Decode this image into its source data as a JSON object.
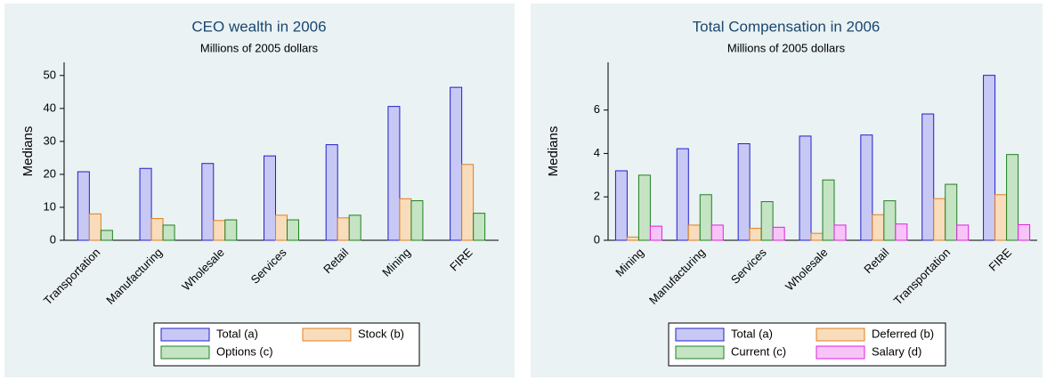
{
  "chart_data": [
    {
      "type": "bar",
      "title": "CEO wealth in 2006",
      "subtitle": "Millions of 2005 dollars",
      "ylabel": "Medians",
      "categories": [
        "Transportation",
        "Manufacturing",
        "Wholesale",
        "Services",
        "Retail",
        "Mining",
        "FIRE"
      ],
      "series": [
        {
          "name": "Total (a)",
          "color": "#c8c8f4",
          "values": [
            20.8,
            21.8,
            23.3,
            25.6,
            29,
            40.6,
            46.4
          ]
        },
        {
          "name": "Stock (b)",
          "color": "#f8dcbc",
          "values": [
            8,
            6.6,
            6,
            7.6,
            6.8,
            12.6,
            23
          ]
        },
        {
          "name": "Options (c)",
          "color": "#c4e4c4",
          "values": [
            3,
            4.6,
            6.2,
            6.2,
            7.6,
            12,
            8.2
          ]
        }
      ],
      "ylim": [
        0,
        54
      ],
      "yticks": [
        0,
        10,
        20,
        30,
        40,
        50
      ]
    },
    {
      "type": "bar",
      "title": "Total Compensation in 2006",
      "subtitle": "Millions of 2005 dollars",
      "ylabel": "Medians",
      "categories": [
        "Mining",
        "Manufacturing",
        "Services",
        "Wholesale",
        "Retail",
        "Transportation",
        "FIRE"
      ],
      "series": [
        {
          "name": "Total (a)",
          "color": "#c8c8f4",
          "values": [
            3.2,
            4.22,
            4.45,
            4.8,
            4.85,
            5.82,
            7.6
          ]
        },
        {
          "name": "Deferred (b)",
          "color": "#f8dcbc",
          "values": [
            0.15,
            0.7,
            0.55,
            0.32,
            1.18,
            1.92,
            2.1
          ]
        },
        {
          "name": "Current (c)",
          "color": "#c4e4c4",
          "values": [
            3,
            2.1,
            1.78,
            2.78,
            1.82,
            2.58,
            3.95
          ]
        },
        {
          "name": "Salary (d)",
          "color": "#f8c4f8",
          "values": [
            0.65,
            0.7,
            0.6,
            0.7,
            0.75,
            0.7,
            0.72
          ]
        }
      ],
      "ylim": [
        0,
        8.2
      ],
      "yticks": [
        0,
        2,
        4,
        6
      ]
    }
  ]
}
